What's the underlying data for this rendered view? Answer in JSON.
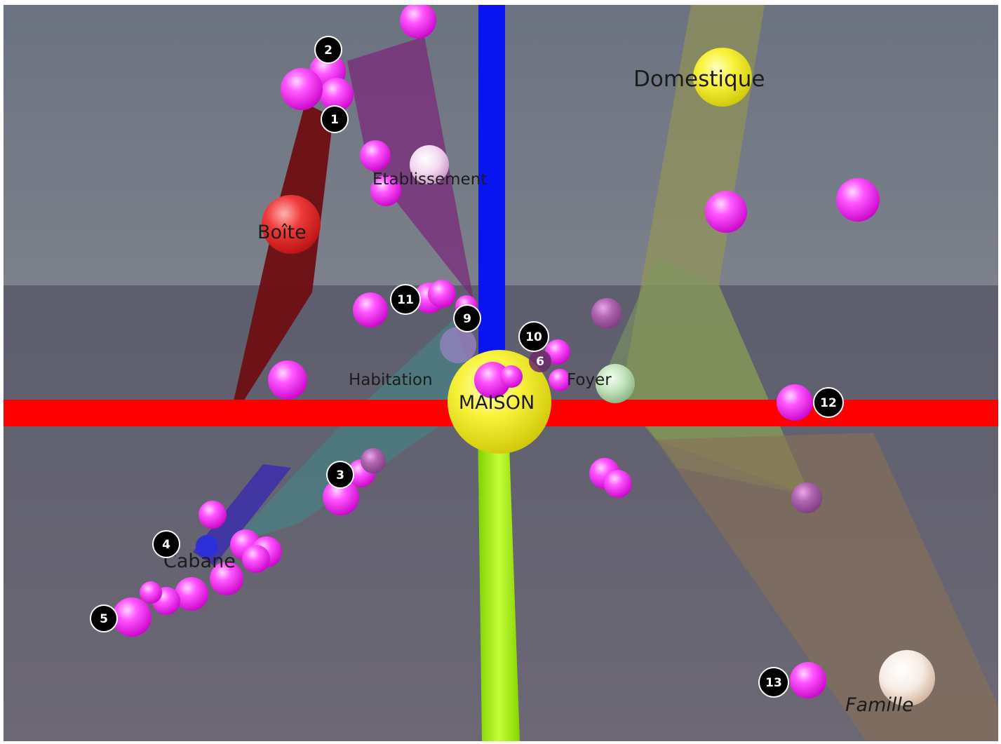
{
  "scene": {
    "center_label": "MAISON",
    "concepts": [
      {
        "id": "boite",
        "label": "Boîte",
        "color": "#e8292b"
      },
      {
        "id": "etablissement",
        "label": "Etablissement",
        "color": "#f4d6f0"
      },
      {
        "id": "domestique",
        "label": "Domestique",
        "color": "#f2ea3a"
      },
      {
        "id": "habitation",
        "label": "Habitation",
        "color": "#b9a7df"
      },
      {
        "id": "foyer",
        "label": "Foyer",
        "color": "#cfe8c9"
      },
      {
        "id": "cabane",
        "label": "Cabane",
        "color": "#2d2fd8"
      },
      {
        "id": "famille",
        "label": "Famille",
        "color": "#f7ece4"
      }
    ],
    "markers": [
      "1",
      "2",
      "3",
      "4",
      "5",
      "6",
      "9",
      "10",
      "11",
      "12",
      "13"
    ],
    "colors": {
      "axis_x": "#ff0000",
      "axis_y": "#0a14f0",
      "axis_z": "#aaff10",
      "sphere": "#ff2cff",
      "center": "#f5f000",
      "sky": "#6f7683",
      "floor": "#6a6a7a"
    }
  }
}
